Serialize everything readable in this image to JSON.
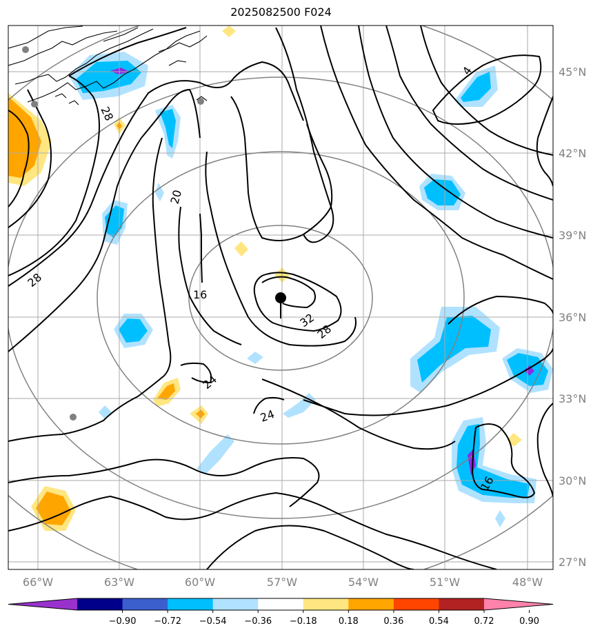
{
  "title": "2025082500 F024",
  "lat_labels": [
    "45°N",
    "42°N",
    "39°N",
    "36°N",
    "33°N",
    "30°N",
    "27°N"
  ],
  "lon_labels": [
    "66°W",
    "63°W",
    "60°W",
    "57°W",
    "54°W",
    "51°W",
    "48°W"
  ],
  "contour_labels": [
    "4",
    "28",
    "20",
    "16",
    "28",
    "32",
    "28",
    "24",
    "24",
    "16"
  ],
  "colorbar": {
    "ticks": [
      "−0.90",
      "−0.72",
      "−0.54",
      "−0.36",
      "−0.18",
      "0.18",
      "0.36",
      "0.54",
      "0.72",
      "0.90"
    ],
    "colors": [
      "#9932cc",
      "#00008b",
      "#3a5fcd",
      "#00bfff",
      "#b0e2ff",
      "#ffffff",
      "#ffe680",
      "#ffa500",
      "#ff4500",
      "#b22222",
      "#ff82ab"
    ]
  },
  "colors": {
    "neg_blue": "#00bfff",
    "neg_light": "#b0e2ff",
    "pos_orange": "#ffa500",
    "pos_yellow": "#ffe680",
    "purple": "#8a2be2"
  }
}
